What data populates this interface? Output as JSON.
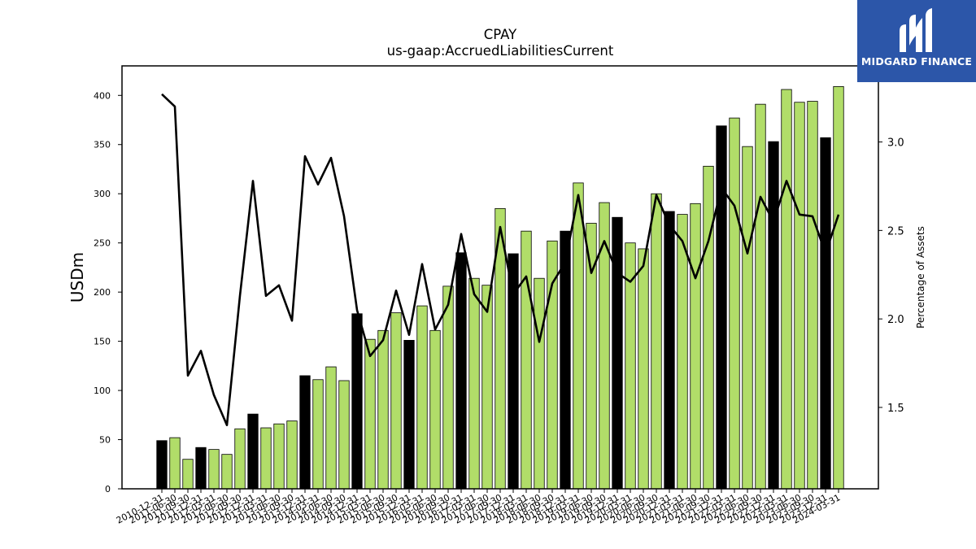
{
  "chart_data": {
    "type": "bar",
    "title": "CPAY",
    "subtitle": "us-gaap:AccruedLiabilitiesCurrent",
    "ylabel": "USDm",
    "y2label": "Percentage of Assets",
    "ylim": [
      0,
      430
    ],
    "y2lim": [
      1.04,
      3.43
    ],
    "yticks": [
      0,
      50,
      100,
      150,
      200,
      250,
      300,
      350,
      400
    ],
    "y2ticks": [
      1.5,
      2.0,
      2.5,
      3.0
    ],
    "categories": [
      "2010-12-31",
      "2011-06-30",
      "2011-09-30",
      "2011-12-31",
      "2012-03-31",
      "2012-06-30",
      "2012-09-30",
      "2012-12-31",
      "2013-03-31",
      "2013-06-30",
      "2013-09-30",
      "2013-12-31",
      "2014-03-31",
      "2014-06-30",
      "2014-09-30",
      "2014-12-31",
      "2015-03-31",
      "2015-06-30",
      "2015-09-30",
      "2015-12-31",
      "2016-03-31",
      "2016-06-30",
      "2016-09-30",
      "2016-12-31",
      "2017-03-31",
      "2017-06-30",
      "2017-09-30",
      "2017-12-31",
      "2018-03-31",
      "2018-06-30",
      "2018-09-30",
      "2018-12-31",
      "2019-03-31",
      "2019-06-30",
      "2019-09-30",
      "2019-12-31",
      "2020-03-31",
      "2020-06-30",
      "2020-09-30",
      "2020-12-31",
      "2021-03-31",
      "2021-06-30",
      "2021-09-30",
      "2021-12-31",
      "2022-03-31",
      "2022-06-30",
      "2022-09-30",
      "2022-12-31",
      "2023-03-31",
      "2023-06-30",
      "2023-09-30",
      "2023-12-31",
      "2024-03-31"
    ],
    "series": [
      {
        "kind": "bar",
        "values": [
          49,
          52,
          30,
          42,
          40,
          35,
          61,
          76,
          62,
          66,
          69,
          115,
          111,
          124,
          110,
          178,
          152,
          161,
          179,
          151,
          186,
          161,
          206,
          240,
          214,
          207,
          285,
          239,
          262,
          214,
          252,
          262,
          311,
          270,
          291,
          276,
          250,
          244,
          300,
          282,
          279,
          290,
          328,
          369,
          377,
          348,
          391,
          353,
          406,
          393,
          394,
          357,
          409
        ],
        "annual_color": "#000000",
        "quarter_color": "#b1dd69",
        "annual_flags": [
          1,
          0,
          0,
          1,
          0,
          0,
          0,
          1,
          0,
          0,
          0,
          1,
          0,
          0,
          0,
          1,
          0,
          0,
          0,
          1,
          0,
          0,
          0,
          1,
          0,
          0,
          0,
          1,
          0,
          0,
          0,
          1,
          0,
          0,
          0,
          1,
          0,
          0,
          0,
          1,
          0,
          0,
          0,
          1,
          0,
          0,
          0,
          1,
          0,
          0,
          0,
          1,
          0
        ]
      },
      {
        "kind": "line",
        "axis": "right",
        "color": "#000000",
        "values": [
          3.27,
          3.2,
          1.68,
          1.82,
          1.57,
          1.4,
          2.13,
          2.78,
          2.13,
          2.19,
          1.99,
          2.92,
          2.76,
          2.91,
          2.58,
          2.05,
          1.79,
          1.88,
          2.16,
          1.91,
          2.31,
          1.94,
          2.08,
          2.48,
          2.14,
          2.04,
          2.52,
          2.14,
          2.24,
          1.87,
          2.2,
          2.32,
          2.7,
          2.26,
          2.44,
          2.26,
          2.21,
          2.3,
          2.7,
          2.53,
          2.44,
          2.23,
          2.44,
          2.74,
          2.64,
          2.37,
          2.69,
          2.55,
          2.78,
          2.59,
          2.58,
          2.37,
          2.59
        ]
      }
    ],
    "grid": false,
    "legend": "none"
  },
  "logo": {
    "text": "MIDGARD FINANCE",
    "bg": "#2c56a9"
  }
}
